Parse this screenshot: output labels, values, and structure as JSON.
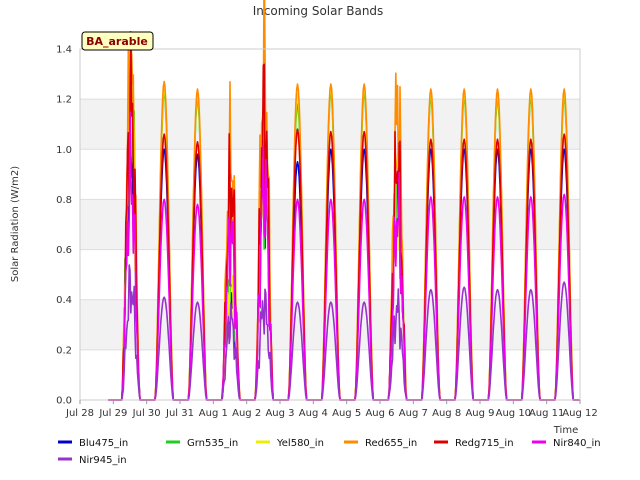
{
  "chart_data": {
    "type": "line",
    "title": "Incoming Solar Bands",
    "xlabel": "Time",
    "ylabel": "Solar Radiation (W/m2)",
    "site_label": "BA_arable",
    "ylim": [
      0,
      1.4
    ],
    "y_ticks": [
      "0.0",
      "0.2",
      "0.4",
      "0.6",
      "0.8",
      "1.0",
      "1.2",
      "1.4"
    ],
    "x_ticks": [
      "Jul 28",
      "Jul 29",
      "Jul 30",
      "Jul 31",
      "Aug 1",
      "Aug 2",
      "Aug 3",
      "Aug 4",
      "Aug 5",
      "Aug 6",
      "Aug 7",
      "Aug 8",
      "Aug 9",
      "Aug 10",
      "Aug 11",
      "Aug 12"
    ],
    "grid": true,
    "legend_position": "bottom",
    "x_start_day": "Jul 28",
    "days": [
      "Jul 29",
      "Jul 30",
      "Jul 31",
      "Aug 1",
      "Aug 2",
      "Aug 3",
      "Aug 4",
      "Aug 5",
      "Aug 6",
      "Aug 7",
      "Aug 8",
      "Aug 9",
      "Aug 10",
      "Aug 11"
    ],
    "series": [
      {
        "name": "Blu475_in",
        "color": "#0000cc",
        "daily_peak": [
          1.0,
          1.0,
          0.98,
          0.4,
          0.85,
          0.95,
          1.0,
          1.0,
          0.75,
          1.0,
          1.0,
          1.0,
          1.0,
          1.0
        ]
      },
      {
        "name": "Grn535_in",
        "color": "#22cc22",
        "daily_peak": [
          1.15,
          1.22,
          1.2,
          0.45,
          0.9,
          1.18,
          1.22,
          1.22,
          0.85,
          1.2,
          1.2,
          1.2,
          1.2,
          1.2
        ]
      },
      {
        "name": "Yel580_in",
        "color": "#eeee00",
        "daily_peak": [
          1.2,
          1.24,
          1.22,
          0.5,
          1.0,
          1.22,
          1.24,
          1.24,
          0.9,
          1.22,
          1.22,
          1.22,
          1.22,
          1.22
        ]
      },
      {
        "name": "Red655_in",
        "color": "#ff8c00",
        "daily_peak": [
          1.29,
          1.27,
          1.24,
          0.97,
          1.33,
          1.26,
          1.26,
          1.26,
          1.15,
          1.24,
          1.24,
          1.24,
          1.24,
          1.24
        ]
      },
      {
        "name": "Redg715_in",
        "color": "#dd0000",
        "daily_peak": [
          1.18,
          1.06,
          1.03,
          0.85,
          1.13,
          1.08,
          1.07,
          1.07,
          0.94,
          1.04,
          1.04,
          1.04,
          1.04,
          1.06
        ]
      },
      {
        "name": "Nir840_in",
        "color": "#ee00ee",
        "daily_peak": [
          0.88,
          0.8,
          0.78,
          0.67,
          0.85,
          0.8,
          0.8,
          0.8,
          0.73,
          0.81,
          0.81,
          0.81,
          0.81,
          0.82
        ]
      },
      {
        "name": "Nir945_in",
        "color": "#9932cc",
        "daily_peak": [
          0.45,
          0.41,
          0.39,
          0.32,
          0.38,
          0.39,
          0.39,
          0.39,
          0.36,
          0.44,
          0.45,
          0.44,
          0.44,
          0.47
        ]
      }
    ]
  }
}
